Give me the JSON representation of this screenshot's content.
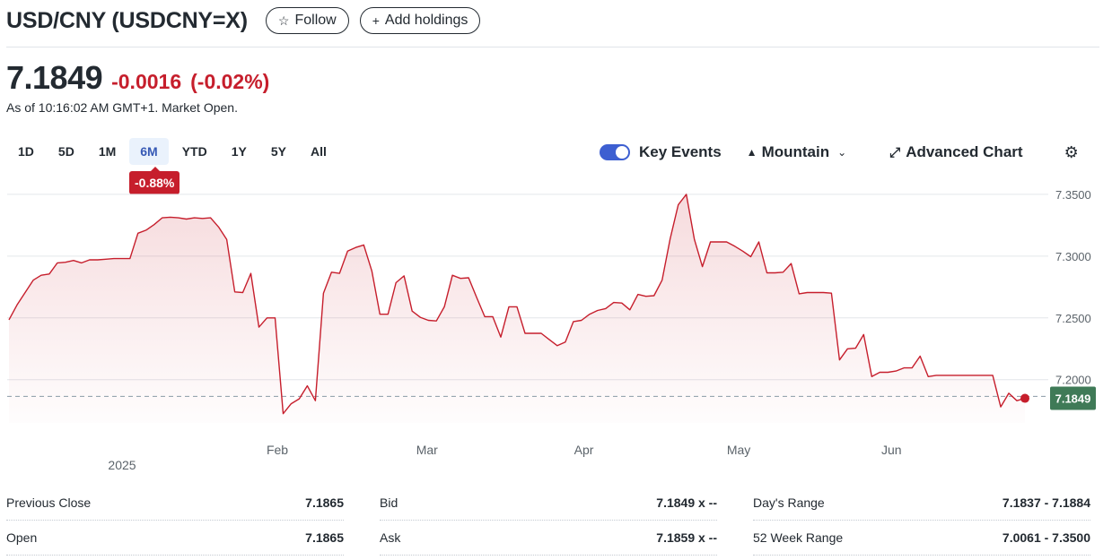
{
  "header": {
    "title": "USD/CNY (USDCNY=X)",
    "follow_label": "Follow",
    "follow_icon": "star-icon",
    "add_holdings_label": "Add holdings",
    "add_holdings_icon": "plus-icon"
  },
  "quote": {
    "price": "7.1849",
    "change": "-0.0016",
    "change_percent": "(-0.02%)",
    "as_of": "As of 10:16:02 AM GMT+1. Market Open.",
    "down_color": "#c61e2c"
  },
  "ranges": {
    "items": [
      "1D",
      "5D",
      "1M",
      "6M",
      "YTD",
      "1Y",
      "5Y",
      "All"
    ],
    "selected": "6M",
    "selected_change": "-0.88%"
  },
  "controls": {
    "key_events_label": "Key Events",
    "key_events_on": true,
    "chart_type_label": "Mountain",
    "advanced_label": "Advanced Chart",
    "accent_color": "#3d5fd1"
  },
  "chart_data": {
    "type": "area",
    "series": [
      {
        "values": [
          7.2485,
          7.2605,
          7.2705,
          7.2805,
          7.2845,
          7.2855,
          7.2945,
          7.295,
          7.2965,
          7.2945,
          7.297,
          7.297,
          7.2975,
          7.298,
          7.298,
          7.298,
          7.3185,
          7.321,
          7.3255,
          7.331,
          7.3315,
          7.331,
          7.33,
          7.331,
          7.3305,
          7.331,
          7.3235,
          7.3135,
          7.271,
          7.2705,
          7.286,
          7.2425,
          7.25,
          7.25,
          7.1725,
          7.1805,
          7.1845,
          7.195,
          7.183,
          7.27,
          7.287,
          7.286,
          7.304,
          7.307,
          7.309,
          7.288,
          7.253,
          7.253,
          7.2785,
          7.284,
          7.2555,
          7.2505,
          7.248,
          7.2475,
          7.259,
          7.2845,
          7.282,
          7.2825,
          7.2665,
          7.251,
          7.251,
          7.2345,
          7.259,
          7.259,
          7.2375,
          7.2375,
          7.2375,
          7.2325,
          7.2275,
          7.2305,
          7.247,
          7.248,
          7.253,
          7.256,
          7.2575,
          7.2625,
          7.262,
          7.2565,
          7.269,
          7.2675,
          7.268,
          7.2805,
          7.314,
          7.3415,
          7.35,
          7.3135,
          7.2915,
          7.3115,
          7.3115,
          7.3115,
          7.308,
          7.304,
          7.2995,
          7.3115,
          7.2865,
          7.2865,
          7.287,
          7.294,
          7.2695,
          7.2705,
          7.2705,
          7.2705,
          7.27,
          7.216,
          7.225,
          7.2255,
          7.2365,
          7.2025,
          7.206,
          7.206,
          7.207,
          7.2095,
          7.2095,
          7.219,
          7.2025,
          7.2035,
          7.2035,
          7.2035,
          7.2035,
          7.2035,
          7.2035,
          7.2035,
          7.2035,
          7.178,
          7.189,
          7.183,
          7.1849
        ]
      }
    ],
    "x_labels": [
      "Feb",
      "Mar",
      "Apr",
      "May",
      "Jun"
    ],
    "x_label_positions": [
      0.26,
      0.405,
      0.557,
      0.707,
      0.855
    ],
    "year_label": "2025",
    "y_ticks": [
      "7.3500",
      "7.3000",
      "7.2500",
      "7.2000"
    ],
    "y_tick_values": [
      7.35,
      7.3,
      7.25,
      7.2
    ],
    "ylim": [
      7.165,
      7.355
    ],
    "current_value": "7.1849",
    "previous_close": 7.1865,
    "line_color": "#c61e2c",
    "current_label_color": "#3f7a57",
    "grid": true
  },
  "stats": {
    "col1": [
      {
        "label": "Previous Close",
        "value": "7.1865"
      },
      {
        "label": "Open",
        "value": "7.1865"
      }
    ],
    "col2": [
      {
        "label": "Bid",
        "value": "7.1849 x --"
      },
      {
        "label": "Ask",
        "value": "7.1859 x --"
      }
    ],
    "col3": [
      {
        "label": "Day's Range",
        "value": "7.1837 - 7.1884"
      },
      {
        "label": "52 Week Range",
        "value": "7.0061 - 7.3500"
      }
    ]
  }
}
